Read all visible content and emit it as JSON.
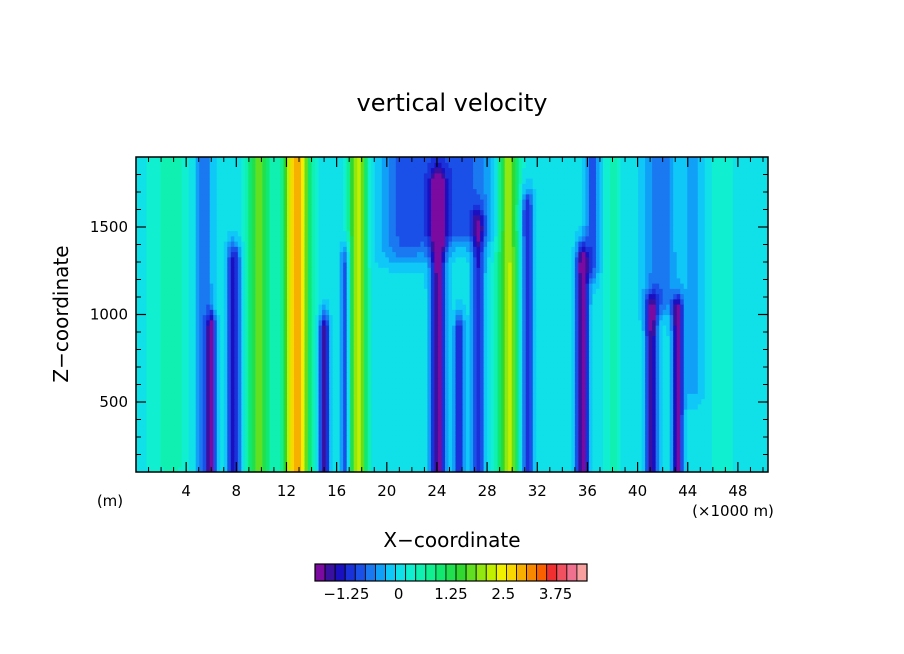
{
  "chart_data": {
    "type": "heatmap",
    "title": "vertical velocity",
    "xlabel": "X−coordinate",
    "ylabel": "Z−coordinate",
    "x_unit_left": "(m)",
    "x_unit_right": "(×1000 m)",
    "xlim": [
      0,
      50.4
    ],
    "ylim": [
      100,
      1900
    ],
    "x_ticks": [
      4,
      8,
      12,
      16,
      20,
      24,
      28,
      32,
      36,
      40,
      44,
      48
    ],
    "x_tick_labels": [
      "4",
      "8",
      "12",
      "16",
      "20",
      "24",
      "28",
      "32",
      "36",
      "40",
      "44",
      "48"
    ],
    "y_ticks": [
      500,
      1000,
      1500
    ],
    "y_tick_labels": [
      "500",
      "1000",
      "1500"
    ],
    "colorbar": {
      "colors": [
        "#7a0aa0",
        "#3a10a0",
        "#1a10c0",
        "#1a30d8",
        "#1a50e8",
        "#1a78f0",
        "#10a0f8",
        "#10c8f8",
        "#10e0e8",
        "#10f0d0",
        "#10f0b0",
        "#10f090",
        "#10e870",
        "#20e050",
        "#30d830",
        "#60e020",
        "#90e810",
        "#c0f000",
        "#f0f000",
        "#f8d800",
        "#f8b000",
        "#f88800",
        "#f86000",
        "#f03030",
        "#f05060",
        "#f07090",
        "#f8a0a0"
      ],
      "tick_values": [
        -1.25,
        0,
        1.25,
        2.5,
        3.75
      ],
      "tick_labels": [
        "−1.25",
        "0",
        "1.25",
        "2.5",
        "3.75"
      ],
      "vmin": -2.0,
      "vmax": 4.5
    },
    "background_value": 0.05,
    "features": [
      {
        "x": 2.8,
        "zbot": 150,
        "ztop": 1900,
        "w": 1.6,
        "amp": 0.45
      },
      {
        "x": 5.4,
        "zbot": 100,
        "ztop": 1900,
        "w": 0.7,
        "amp": -0.8
      },
      {
        "x": 6.0,
        "zbot": 100,
        "ztop": 900,
        "w": 0.35,
        "amp": -1.9
      },
      {
        "x": 7.8,
        "zbot": 100,
        "ztop": 1300,
        "w": 0.55,
        "amp": -1.5
      },
      {
        "x": 9.8,
        "zbot": 100,
        "ztop": 1900,
        "w": 0.9,
        "amp": 1.6
      },
      {
        "x": 12.8,
        "zbot": 100,
        "ztop": 1900,
        "w": 1.0,
        "amp": 3.0
      },
      {
        "x": 15.0,
        "zbot": 100,
        "ztop": 900,
        "w": 0.4,
        "amp": -1.8
      },
      {
        "x": 16.7,
        "zbot": 100,
        "ztop": 1300,
        "w": 0.4,
        "amp": -1.1
      },
      {
        "x": 17.7,
        "zbot": 100,
        "ztop": 1900,
        "w": 0.7,
        "amp": 2.2
      },
      {
        "x": 21.5,
        "zbot": 1400,
        "ztop": 1900,
        "w": 2.2,
        "amp": -0.8
      },
      {
        "x": 24.1,
        "zbot": 100,
        "ztop": 1700,
        "w": 0.6,
        "amp": -1.9
      },
      {
        "x": 25.8,
        "zbot": 100,
        "ztop": 900,
        "w": 0.4,
        "amp": -1.4
      },
      {
        "x": 27.3,
        "zbot": 100,
        "ztop": 1500,
        "w": 0.5,
        "amp": -1.3
      },
      {
        "x": 29.7,
        "zbot": 100,
        "ztop": 1900,
        "w": 0.8,
        "amp": 2.1
      },
      {
        "x": 31.2,
        "zbot": 100,
        "ztop": 1600,
        "w": 0.5,
        "amp": -1.3
      },
      {
        "x": 25.5,
        "zbot": 1500,
        "ztop": 1900,
        "w": 3.2,
        "amp": -1.0
      },
      {
        "x": 35.6,
        "zbot": 100,
        "ztop": 1300,
        "w": 0.5,
        "amp": -2.0
      },
      {
        "x": 36.4,
        "zbot": 1300,
        "ztop": 1900,
        "w": 0.6,
        "amp": -0.9
      },
      {
        "x": 38.0,
        "zbot": 100,
        "ztop": 1900,
        "w": 0.7,
        "amp": 0.4
      },
      {
        "x": 41.1,
        "zbot": 100,
        "ztop": 1000,
        "w": 0.5,
        "amp": -1.8
      },
      {
        "x": 41.8,
        "zbot": 1100,
        "ztop": 1900,
        "w": 1.3,
        "amp": -0.8
      },
      {
        "x": 43.2,
        "zbot": 100,
        "ztop": 1000,
        "w": 0.45,
        "amp": -1.9
      },
      {
        "x": 44.5,
        "zbot": 600,
        "ztop": 1900,
        "w": 0.8,
        "amp": -0.5
      },
      {
        "x": 46.8,
        "zbot": 100,
        "ztop": 1900,
        "w": 1.2,
        "amp": 0.2
      }
    ]
  }
}
